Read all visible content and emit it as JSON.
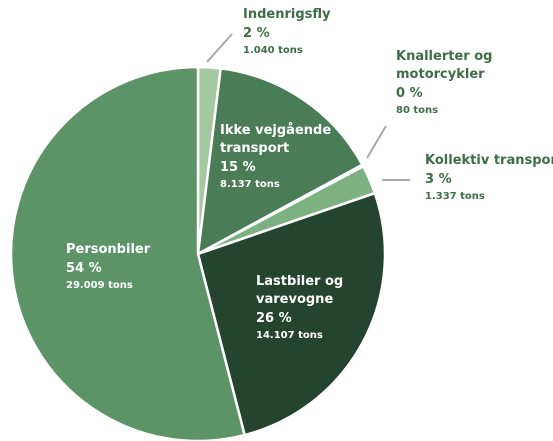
{
  "chart_data": {
    "type": "pie",
    "categories": [
      "Indenrigsfly",
      "Ikke vejgående transport",
      "Knallerter og motorcykler",
      "Kollektiv transport",
      "Lastbiler og varevogne",
      "Personbiler"
    ],
    "values": [
      2,
      15,
      0,
      3,
      26,
      54
    ],
    "value_labels": [
      "2 %",
      "15 %",
      "0 %",
      "3 %",
      "26 %",
      "54 %"
    ],
    "tons": [
      1040,
      8137,
      80,
      1337,
      14107,
      29009
    ],
    "tons_labels": [
      "1.040 tons",
      "8.137 tons",
      "80 tons",
      "1.337 tons",
      "14.107 tons",
      "29.009 tons"
    ],
    "colors": [
      "#a6c8a0",
      "#4a7d55",
      "#2f5e3c",
      "#7db182",
      "#24442f",
      "#5c9468"
    ]
  }
}
